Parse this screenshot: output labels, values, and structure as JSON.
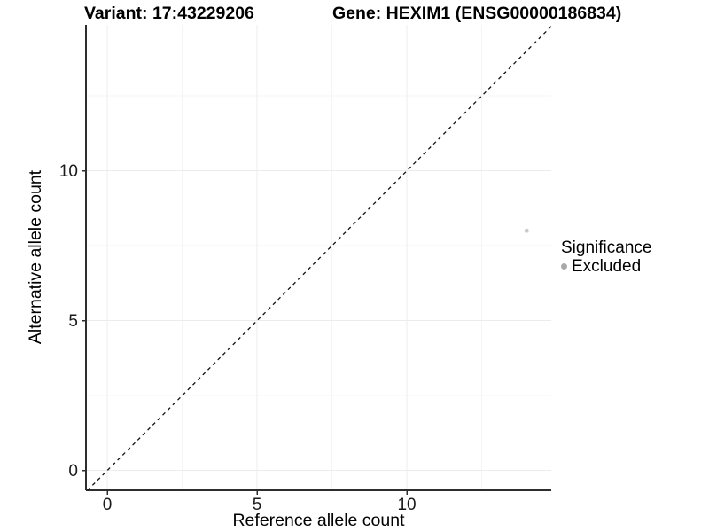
{
  "titles": {
    "variant": "Variant: 17:43229206",
    "gene": "Gene: HEXIM1 (ENSG00000186834)"
  },
  "axes": {
    "x": {
      "label": "Reference allele count",
      "tick_labels": [
        "0",
        "5",
        "10"
      ]
    },
    "y": {
      "label": "Alternative allele count",
      "tick_labels": [
        "0",
        "5",
        "10"
      ]
    }
  },
  "legend": {
    "title": "Significance",
    "items": [
      {
        "label": "Excluded",
        "key_color": "#a9a9a9"
      }
    ]
  },
  "colors": {
    "background": "#ffffff",
    "axis_line": "#2e2e2e",
    "tick_mark": "#2e2e2e",
    "tick_text": "#1a1a1a",
    "grid_major": "#ececec",
    "grid_minor": "#f5f5f5",
    "identity_line": "#111111",
    "point": "#c9c9c9"
  },
  "chart_data": {
    "type": "scatter",
    "title": "Variant: 17:43229206 | Gene: HEXIM1 (ENSG00000186834)",
    "xlabel": "Reference allele count",
    "ylabel": "Alternative allele count",
    "xlim": [
      -0.71,
      14.82
    ],
    "ylim": [
      -0.66,
      14.87
    ],
    "x_ticks": [
      0,
      5,
      10
    ],
    "y_ticks": [
      0,
      5,
      10
    ],
    "x_minor_ticks": [
      2.5,
      7.5,
      12.5
    ],
    "y_minor_ticks": [
      2.5,
      7.5,
      12.5
    ],
    "grid": "on",
    "legend_position": "right",
    "series": [
      {
        "name": "Excluded",
        "color": "#c9c9c9",
        "point_radius": 2.5,
        "points": [
          {
            "x": 14,
            "y": 8
          }
        ]
      }
    ],
    "reference_line": {
      "kind": "identity",
      "equation": "y = x",
      "style": "dashed",
      "color": "#111111"
    }
  }
}
